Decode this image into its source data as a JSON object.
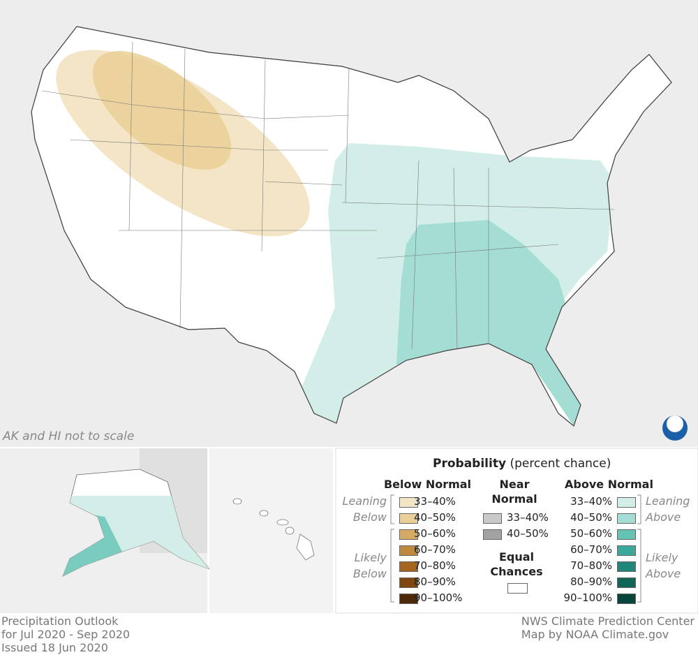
{
  "map_note": "AK and HI not to scale",
  "legend": {
    "title": "Probability",
    "subtitle": "(percent chance)",
    "below": {
      "heading": "Below Normal",
      "leaning_label": "Leaning Below",
      "likely_label": "Likely Below",
      "items": [
        {
          "label": "33–40%",
          "color": "#f4e5c6"
        },
        {
          "label": "40–50%",
          "color": "#ead096"
        },
        {
          "label": "50–60%",
          "color": "#d5aa62"
        },
        {
          "label": "60–70%",
          "color": "#c08a3e"
        },
        {
          "label": "70–80%",
          "color": "#a6651e"
        },
        {
          "label": "80–90%",
          "color": "#7e4610"
        },
        {
          "label": "90–100%",
          "color": "#4d2907"
        }
      ]
    },
    "near": {
      "heading": "Near Normal",
      "items": [
        {
          "label": "33–40%",
          "color": "#c9c9c9"
        },
        {
          "label": "40–50%",
          "color": "#a2a2a2"
        }
      ]
    },
    "equal": {
      "heading": "Equal Chances",
      "color": "#ffffff"
    },
    "above": {
      "heading": "Above Normal",
      "leaning_label": "Leaning Above",
      "likely_label": "Likely Above",
      "items": [
        {
          "label": "33–40%",
          "color": "#d3eee9"
        },
        {
          "label": "40–50%",
          "color": "#a4ddd3"
        },
        {
          "label": "50–60%",
          "color": "#64c3b3"
        },
        {
          "label": "60–70%",
          "color": "#3aa89a"
        },
        {
          "label": "70–80%",
          "color": "#1f8779"
        },
        {
          "label": "80–90%",
          "color": "#0f6657"
        },
        {
          "label": "90–100%",
          "color": "#06453a"
        }
      ]
    }
  },
  "footer": {
    "left": [
      "Precipitation Outlook",
      "for Jul 2020 - Sep 2020",
      "Issued 18 Jun 2020"
    ],
    "right": [
      "NWS Climate Prediction Center",
      "Map by NOAA Climate.gov"
    ]
  }
}
